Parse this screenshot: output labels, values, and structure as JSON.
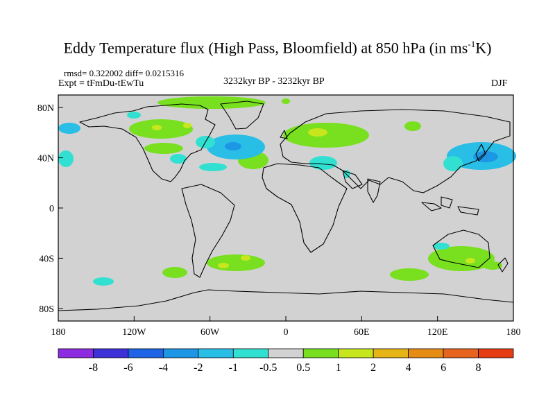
{
  "title": {
    "main": "Eddy Temperature flux (High Pass, Bloomfield) at 850 hPa (in ms",
    "sup": "-1",
    "tail": "K)"
  },
  "header": {
    "stats": "rmsd= 0.322002  diff= 0.0215316",
    "expt": "Expt = tFmDu-tEwTu",
    "period": "3232kyr BP - 3232kyr BP",
    "season": "DJF"
  },
  "axes": {
    "x_ticks": [
      "180",
      "120W",
      "60W",
      "0",
      "60E",
      "120E",
      "180"
    ],
    "y_ticks": [
      "80N",
      "40N",
      "0",
      "40S",
      "80S"
    ],
    "lon_range": [
      -180,
      180
    ],
    "lat_range": [
      -90,
      90
    ]
  },
  "colorbar": {
    "labels": [
      "-8",
      "-6",
      "-4",
      "-2",
      "-1",
      "-0.5",
      "0.5",
      "1",
      "2",
      "4",
      "6",
      "8"
    ],
    "colors": [
      "#8c2be0",
      "#3c32d8",
      "#1e64e6",
      "#1e96e6",
      "#28bee6",
      "#32e0d2",
      "#d2d2d2",
      "#78e01e",
      "#c8e61e",
      "#e6b414",
      "#e68c14",
      "#e6641e",
      "#e63c14"
    ]
  },
  "palette": {
    "neutral": "#d2d2d2",
    "frame": "#000000"
  }
}
